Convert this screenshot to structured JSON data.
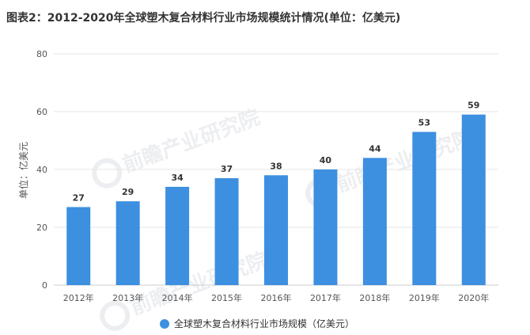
{
  "header": {
    "title": "图表2：2012-2020年全球塑木复合材料行业市场规模统计情况(单位：亿美元)"
  },
  "watermark": {
    "text": "前瞻产业研究院"
  },
  "colors": {
    "bar": "#3d8fe0",
    "grid": "#e5e5e5",
    "axis_text": "#555555",
    "label_text": "#333333"
  },
  "chart_data": {
    "type": "bar",
    "title": "图表2：2012-2020年全球塑木复合材料行业市场规模统计情况(单位：亿美元)",
    "xlabel": "",
    "ylabel": "单位：亿美元",
    "categories": [
      "2012年",
      "2013年",
      "2014年",
      "2015年",
      "2016年",
      "2017年",
      "2018年",
      "2019年",
      "2020年"
    ],
    "series": [
      {
        "name": "全球塑木复合材料行业市场规模（亿美元）",
        "values": [
          27,
          29,
          34,
          37,
          38,
          40,
          44,
          53,
          59
        ]
      }
    ],
    "ylim": [
      0,
      80
    ],
    "yticks": [
      0,
      20,
      40,
      60,
      80
    ],
    "grid": true,
    "legend_position": "bottom"
  }
}
